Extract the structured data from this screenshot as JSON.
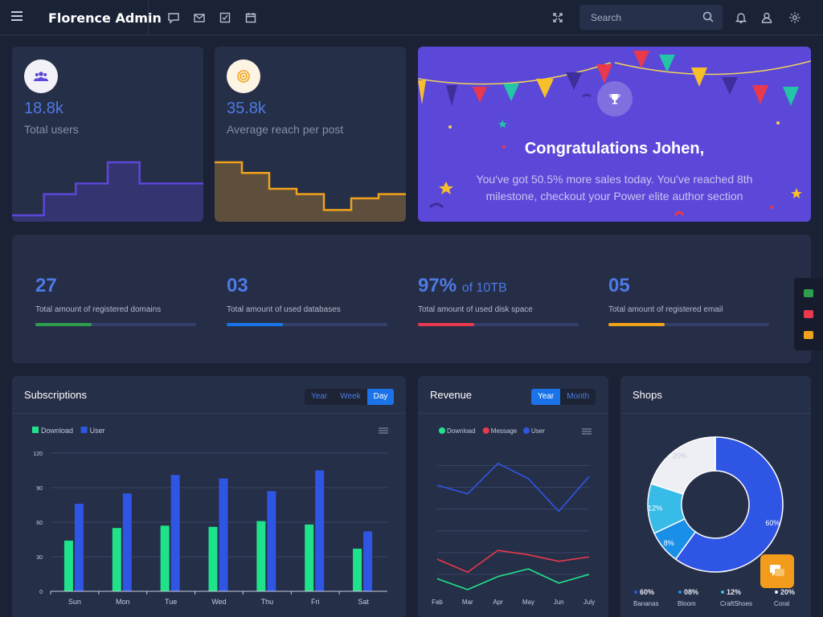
{
  "app": {
    "title": "Florence Admin"
  },
  "search": {
    "placeholder": "Search"
  },
  "icons": {
    "menu": "hamburger-icon",
    "chat": "chat-icon",
    "mail": "mail-icon",
    "tasks": "checkbox-icon",
    "calendar": "calendar-icon",
    "fullscreen": "fullscreen-icon",
    "search": "search-icon",
    "notifications": "bell-icon",
    "user": "user-icon",
    "settings": "gear-icon"
  },
  "stats": [
    {
      "value": "18.8k",
      "label": "Total users",
      "icon": "users-icon",
      "color": "#5b48d8",
      "chart_data": {
        "type": "area",
        "values": [
          0,
          2,
          3,
          5,
          3,
          3
        ]
      }
    },
    {
      "value": "35.8k",
      "label": "Average reach per post",
      "icon": "target-icon",
      "color": "#f0a21c",
      "chart_data": {
        "type": "area",
        "values": [
          5,
          4,
          2.5,
          2,
          0.5,
          1.6,
          2
        ]
      }
    }
  ],
  "congrats": {
    "title": "Congratulations Johen,",
    "message": "You've got 50.5% more sales today. You've reached 8th milestone, checkout your Power elite author section"
  },
  "kpis": [
    {
      "value": "27",
      "suffix": "",
      "label": "Total amount of registered domains",
      "progress": 0.35,
      "color": "#2e9e4e"
    },
    {
      "value": "03",
      "suffix": "",
      "label": "Total amount of used databases",
      "progress": 0.35,
      "color": "#1a73e8"
    },
    {
      "value": "97%",
      "suffix": "of 10TB",
      "label": "Total amount of used disk space",
      "progress": 0.35,
      "color": "#e8394d"
    },
    {
      "value": "05",
      "suffix": "",
      "label": "Total amount of registered email",
      "progress": 0.35,
      "color": "#f0a21c"
    }
  ],
  "subscriptions": {
    "title": "Subscriptions",
    "tabs": [
      "Year",
      "Week",
      "Day"
    ],
    "active_tab": "Day",
    "chart_data": {
      "type": "bar",
      "categories": [
        "Sun",
        "Mon",
        "Tue",
        "Wed",
        "Thu",
        "Fri",
        "Sat"
      ],
      "series": [
        {
          "name": "Download",
          "color": "#1fe38a",
          "values": [
            44,
            55,
            57,
            56,
            61,
            58,
            37
          ]
        },
        {
          "name": "User",
          "color": "#2f55e4",
          "values": [
            76,
            85,
            101,
            98,
            87,
            105,
            52
          ]
        }
      ],
      "ylim": [
        0,
        120
      ],
      "yticks": [
        "0",
        "30",
        "60",
        "90",
        "120"
      ]
    }
  },
  "revenue": {
    "title": "Revenue",
    "tabs": [
      "Year",
      "Month"
    ],
    "active_tab": "Year",
    "chart_data": {
      "type": "line",
      "categories": [
        "Fab",
        "Mar",
        "Apr",
        "May",
        "Jun",
        "July"
      ],
      "series": [
        {
          "name": "Download",
          "color": "#1fe38a",
          "values": [
            16,
            6,
            18,
            25,
            12,
            20
          ]
        },
        {
          "name": "Message",
          "color": "#e8394d",
          "values": [
            34,
            22,
            42,
            38,
            32,
            36
          ]
        },
        {
          "name": "User",
          "color": "#2f55e4",
          "values": [
            102,
            94,
            122,
            108,
            78,
            110
          ]
        }
      ]
    }
  },
  "shops": {
    "title": "Shops",
    "chart_data": {
      "type": "pie",
      "slices": [
        {
          "name": "Bananas",
          "value": 60,
          "label": "60%",
          "legend_value": "60%",
          "color": "#2f55e4"
        },
        {
          "name": "Bloom",
          "value": 8,
          "label": "8%",
          "legend_value": "08%",
          "color": "#1a8fe8"
        },
        {
          "name": "CraftShoes",
          "value": 12,
          "label": "12%",
          "legend_value": "12%",
          "color": "#37bce8"
        },
        {
          "name": "Coral",
          "value": 20,
          "label": "20%",
          "legend_value": "20%",
          "color": "#eeeff4"
        }
      ]
    }
  }
}
